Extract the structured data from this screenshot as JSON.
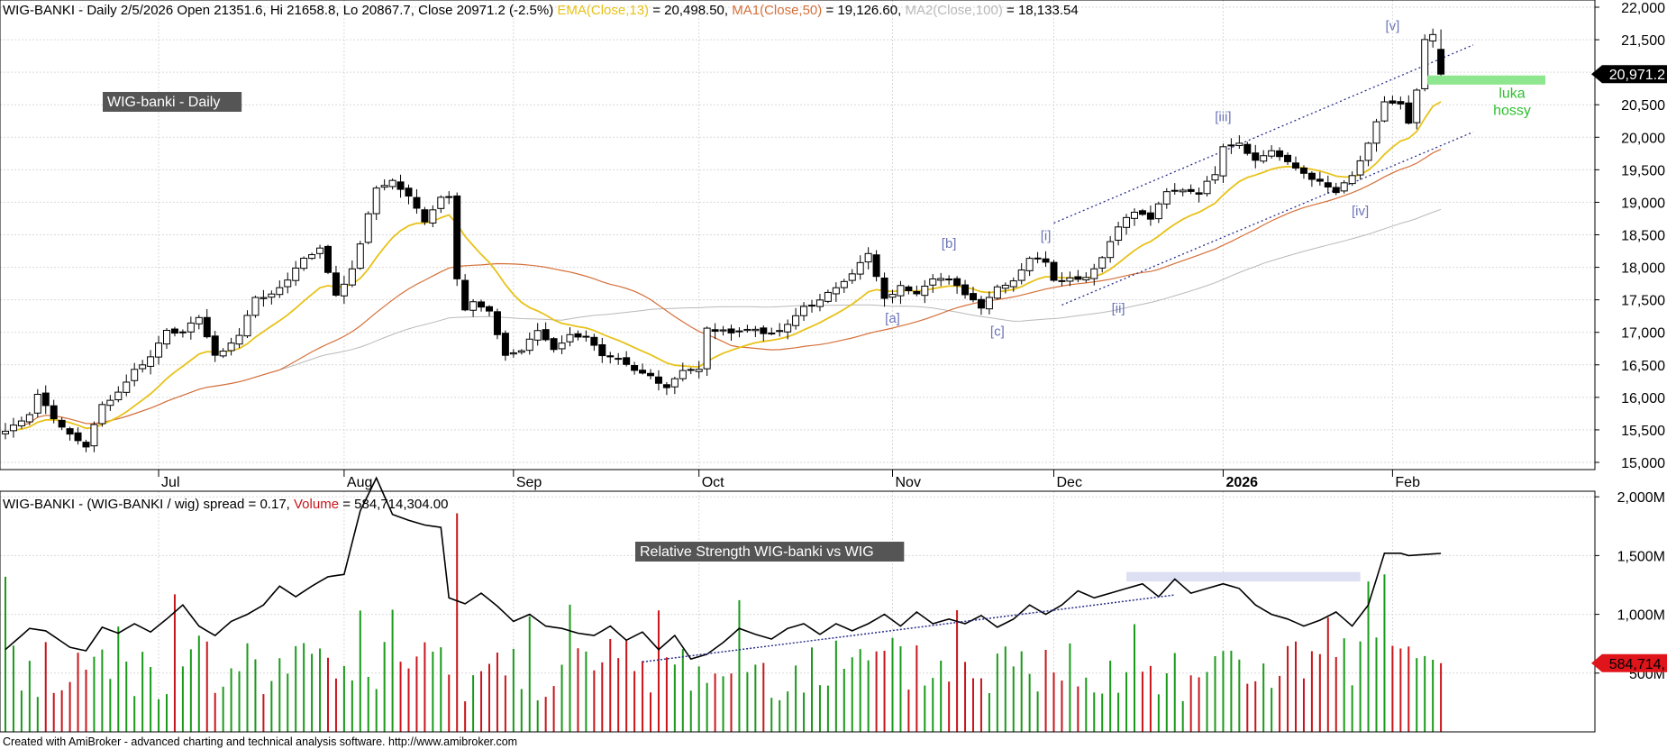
{
  "colors": {
    "background": "#ffffff",
    "grid": "#d9d9d9",
    "axis": "#000000",
    "up_candle": "#ffffff",
    "down_candle": "#000000",
    "ema": "#e8c21a",
    "ma50": "#d5703a",
    "ma100": "#b9b9b9",
    "channel": "#2a2f8a",
    "wave_label": "#6b74b8",
    "luka_zone": "#8ee68e",
    "luka_text": "#2fbf2f",
    "rs_band": "#dde0f2",
    "volume_up": "#1a9a1a",
    "volume_down": "#c8161b",
    "label_box": "#555555",
    "price_tag": "#000000",
    "volume_tag": "#e0141b"
  },
  "upper_header": {
    "parts": [
      {
        "text": "WIG-BANKI - Daily 2/5/2026 Open 21351.6, Hi 21658.8, Lo 20867.7, Close 20971.2 (-2.5%) ",
        "color": "#000000"
      },
      {
        "text": "EMA(Close,13)",
        "color": "#e8c21a"
      },
      {
        "text": " = 20,498.50, ",
        "color": "#000000"
      },
      {
        "text": "MA1(Close,50)",
        "color": "#d5703a"
      },
      {
        "text": " = 19,126.60, ",
        "color": "#000000"
      },
      {
        "text": "MA2(Close,100)",
        "color": "#b9b9b9"
      },
      {
        "text": " = 18,133.54",
        "color": "#000000"
      }
    ]
  },
  "lower_header": {
    "parts": [
      {
        "text": "WIG-BANKI - (WIG-BANKI / wig) spread = 0.17, ",
        "color": "#000000"
      },
      {
        "text": "Volume",
        "color": "#c8161b"
      },
      {
        "text": " = 584,714,304.00",
        "color": "#000000"
      }
    ]
  },
  "labels": {
    "upper_box": "WIG-banki - Daily",
    "lower_box": "Relative Strength WIG-banki vs WIG",
    "luka": "luka\nhossy",
    "price_tag": "20,971.2",
    "volume_tag": "584,714,",
    "footer": "Created with AmiBroker - advanced charting and technical analysis software. http://www.amibroker.com"
  },
  "chart_data": [
    {
      "type": "candlestick",
      "title": "WIG-BANKI - Daily",
      "ylim": [
        14870,
        22000
      ],
      "y_ticks": [
        15000,
        15500,
        16000,
        16500,
        17000,
        17500,
        18000,
        18500,
        19000,
        19500,
        20000,
        20500,
        21000,
        21500,
        22000
      ],
      "y_tick_labels": [
        "15,000",
        "15,500",
        "16,000",
        "16,500",
        "17,000",
        "17,500",
        "18,000",
        "18,500",
        "19,000",
        "19,500",
        "20,000",
        "20,500",
        "21,000",
        "21,500",
        "22,000"
      ],
      "x_months": [
        {
          "label": "Jul",
          "index": 19,
          "bold": false
        },
        {
          "label": "Aug",
          "index": 42,
          "bold": false
        },
        {
          "label": "Sep",
          "index": 63,
          "bold": false
        },
        {
          "label": "Oct",
          "index": 86,
          "bold": false
        },
        {
          "label": "Nov",
          "index": 110,
          "bold": false
        },
        {
          "label": "Dec",
          "index": 130,
          "bold": false
        },
        {
          "label": "2026",
          "index": 151,
          "bold": true
        },
        {
          "label": "Feb",
          "index": 172,
          "bold": false
        }
      ],
      "grid": true,
      "close_anchors": [
        [
          0,
          15480
        ],
        [
          3,
          15750
        ],
        [
          4,
          16050
        ],
        [
          7,
          15520
        ],
        [
          10,
          15250
        ],
        [
          12,
          15880
        ],
        [
          14,
          16080
        ],
        [
          16,
          16420
        ],
        [
          18,
          16620
        ],
        [
          20,
          17050
        ],
        [
          22,
          16980
        ],
        [
          24,
          17250
        ],
        [
          26,
          16620
        ],
        [
          29,
          16950
        ],
        [
          31,
          17550
        ],
        [
          33,
          17560
        ],
        [
          35,
          17820
        ],
        [
          37,
          18150
        ],
        [
          39,
          18280
        ],
        [
          41,
          17580
        ],
        [
          43,
          17950
        ],
        [
          45,
          18800
        ],
        [
          46,
          19220
        ],
        [
          48,
          19330
        ],
        [
          50,
          19080
        ],
        [
          52,
          18720
        ],
        [
          54,
          19080
        ],
        [
          55,
          19100
        ],
        [
          56,
          17850
        ],
        [
          57,
          17350
        ],
        [
          58,
          17460
        ],
        [
          60,
          17300
        ],
        [
          62,
          16650
        ],
        [
          64,
          16720
        ],
        [
          66,
          17030
        ],
        [
          68,
          16750
        ],
        [
          70,
          16950
        ],
        [
          72,
          16950
        ],
        [
          74,
          16620
        ],
        [
          76,
          16570
        ],
        [
          78,
          16400
        ],
        [
          80,
          16330
        ],
        [
          82,
          16160
        ],
        [
          84,
          16430
        ],
        [
          86,
          16420
        ],
        [
          87,
          17050
        ],
        [
          89,
          17010
        ],
        [
          91,
          17030
        ],
        [
          93,
          17050
        ],
        [
          95,
          16960
        ],
        [
          97,
          17100
        ],
        [
          99,
          17400
        ],
        [
          101,
          17480
        ],
        [
          103,
          17700
        ],
        [
          105,
          17920
        ],
        [
          107,
          18200
        ],
        [
          109,
          17500
        ],
        [
          111,
          17700
        ],
        [
          113,
          17620
        ],
        [
          115,
          17850
        ],
        [
          117,
          17800
        ],
        [
          119,
          17600
        ],
        [
          121,
          17400
        ],
        [
          123,
          17700
        ],
        [
          125,
          17800
        ],
        [
          127,
          18150
        ],
        [
          129,
          18100
        ],
        [
          130,
          17820
        ],
        [
          132,
          17830
        ],
        [
          134,
          17850
        ],
        [
          136,
          18150
        ],
        [
          138,
          18650
        ],
        [
          140,
          18850
        ],
        [
          142,
          18750
        ],
        [
          144,
          19150
        ],
        [
          146,
          19200
        ],
        [
          148,
          19150
        ],
        [
          150,
          19450
        ],
        [
          151,
          19880
        ],
        [
          153,
          19920
        ],
        [
          155,
          19640
        ],
        [
          157,
          19800
        ],
        [
          159,
          19600
        ],
        [
          161,
          19450
        ],
        [
          163,
          19300
        ],
        [
          165,
          19150
        ],
        [
          167,
          19400
        ],
        [
          169,
          19880
        ],
        [
          171,
          20550
        ],
        [
          173,
          20500
        ],
        [
          174,
          20200
        ],
        [
          175,
          20700
        ],
        [
          176,
          21500
        ],
        [
          177,
          21550
        ],
        [
          178,
          20971.2
        ]
      ],
      "ema13_final": 20498.5,
      "ma50_final": 19126.6,
      "ma100_final": 18133.54,
      "last": {
        "open": 21351.6,
        "high": 21658.8,
        "low": 20867.7,
        "close": 20971.2
      },
      "wave_labels": [
        {
          "text": "[a]",
          "index": 110,
          "value": 17150
        },
        {
          "text": "[b]",
          "index": 117,
          "value": 18300
        },
        {
          "text": "[c]",
          "index": 123,
          "value": 16950
        },
        {
          "text": "[i]",
          "index": 129,
          "value": 18420
        },
        {
          "text": "[ii]",
          "index": 138,
          "value": 17300
        },
        {
          "text": "[iii]",
          "index": 151,
          "value": 20250
        },
        {
          "text": "[iv]",
          "index": 168,
          "value": 18800
        },
        {
          "text": "[v]",
          "index": 172,
          "value": 21650
        }
      ],
      "channel_upper": [
        [
          130,
          18680
        ],
        [
          182,
          21420
        ]
      ],
      "channel_lower": [
        [
          131,
          17420
        ],
        [
          182,
          20080
        ]
      ],
      "luka_zone": [
        20810,
        20950
      ]
    },
    {
      "type": "line+bar",
      "title": "Relative Strength WIG-banki vs WIG",
      "ylim": [
        0,
        2150000000
      ],
      "y_ticks": [
        500000000,
        1000000000,
        1500000000,
        2000000000
      ],
      "y_tick_labels": [
        "500M",
        "1,000M",
        "1,500M",
        "2,000M"
      ],
      "rs_spread_last": 0.17,
      "volume_last": 584714304.0,
      "rs_anchors_vol_scale": [
        [
          0,
          700
        ],
        [
          3,
          880
        ],
        [
          5,
          860
        ],
        [
          8,
          720
        ],
        [
          10,
          690
        ],
        [
          12,
          890
        ],
        [
          14,
          840
        ],
        [
          16,
          920
        ],
        [
          18,
          850
        ],
        [
          20,
          960
        ],
        [
          22,
          1080
        ],
        [
          24,
          900
        ],
        [
          26,
          820
        ],
        [
          28,
          940
        ],
        [
          30,
          1000
        ],
        [
          32,
          1080
        ],
        [
          34,
          1240
        ],
        [
          36,
          1150
        ],
        [
          38,
          1240
        ],
        [
          40,
          1320
        ],
        [
          42,
          1340
        ],
        [
          44,
          1880
        ],
        [
          46,
          2160
        ],
        [
          48,
          1850
        ],
        [
          50,
          1800
        ],
        [
          52,
          1760
        ],
        [
          54,
          1740
        ],
        [
          55,
          1140
        ],
        [
          57,
          1090
        ],
        [
          59,
          1180
        ],
        [
          61,
          1070
        ],
        [
          63,
          940
        ],
        [
          65,
          1000
        ],
        [
          67,
          900
        ],
        [
          69,
          880
        ],
        [
          71,
          840
        ],
        [
          73,
          820
        ],
        [
          75,
          900
        ],
        [
          77,
          780
        ],
        [
          79,
          850
        ],
        [
          81,
          700
        ],
        [
          83,
          820
        ],
        [
          85,
          620
        ],
        [
          87,
          660
        ],
        [
          89,
          760
        ],
        [
          91,
          880
        ],
        [
          93,
          830
        ],
        [
          95,
          790
        ],
        [
          97,
          880
        ],
        [
          99,
          920
        ],
        [
          101,
          830
        ],
        [
          103,
          920
        ],
        [
          105,
          860
        ],
        [
          107,
          920
        ],
        [
          109,
          1000
        ],
        [
          111,
          900
        ],
        [
          113,
          1020
        ],
        [
          115,
          920
        ],
        [
          117,
          960
        ],
        [
          119,
          920
        ],
        [
          121,
          990
        ],
        [
          123,
          890
        ],
        [
          125,
          960
        ],
        [
          127,
          1080
        ],
        [
          129,
          1000
        ],
        [
          131,
          1080
        ],
        [
          133,
          1200
        ],
        [
          135,
          1140
        ],
        [
          137,
          1180
        ],
        [
          139,
          1220
        ],
        [
          141,
          1260
        ],
        [
          143,
          1150
        ],
        [
          145,
          1300
        ],
        [
          147,
          1180
        ],
        [
          149,
          1220
        ],
        [
          151,
          1260
        ],
        [
          153,
          1220
        ],
        [
          155,
          1080
        ],
        [
          157,
          1000
        ],
        [
          159,
          960
        ],
        [
          161,
          900
        ],
        [
          163,
          950
        ],
        [
          165,
          1020
        ],
        [
          167,
          900
        ],
        [
          169,
          1080
        ],
        [
          171,
          1520
        ],
        [
          173,
          1520
        ],
        [
          174,
          1500
        ]
      ],
      "rs_trendline": [
        [
          79,
          595
        ],
        [
          145,
          1165
        ]
      ],
      "rs_band": [
        139,
        168,
        1280,
        1360
      ],
      "volume_spikes": [
        [
          0,
          1320
        ],
        [
          56,
          1860
        ],
        [
          169,
          1280
        ],
        [
          171,
          1340
        ]
      ]
    }
  ]
}
